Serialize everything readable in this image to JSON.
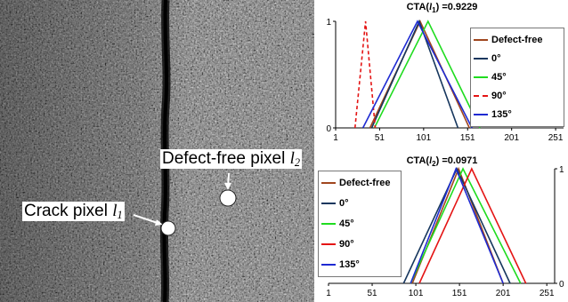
{
  "image": {
    "callouts": [
      {
        "label": "Crack pixel",
        "symbol": "l",
        "subscript": "1"
      },
      {
        "label": "Defect-free pixel",
        "symbol": "l",
        "subscript": "2"
      }
    ]
  },
  "chart_data": [
    {
      "type": "line",
      "title": "CTA(l1) =0.9229",
      "title_parts": {
        "prefix": "CTA(",
        "symbol": "l",
        "subscript": "1",
        "suffix": ") =0.9229"
      },
      "x_ticks": [
        1,
        51,
        101,
        151,
        201,
        251
      ],
      "xlim": [
        1,
        260
      ],
      "y_ticks": [
        0,
        1
      ],
      "ylim": [
        0,
        1
      ],
      "y_axis_side": "left",
      "legend_position": "right",
      "series": [
        {
          "name": "Defect-free",
          "color": "#a0461e",
          "dash": false,
          "x": [
            40,
            97,
            153
          ],
          "y": [
            0,
            1,
            0
          ]
        },
        {
          "name": "0°",
          "color": "#17375e",
          "dash": false,
          "x": [
            42,
            96,
            140
          ],
          "y": [
            0,
            1,
            0
          ]
        },
        {
          "name": "45°",
          "color": "#1fdc1f",
          "dash": false,
          "x": [
            45,
            106,
            165
          ],
          "y": [
            0,
            1,
            0
          ]
        },
        {
          "name": "90°",
          "color": "#e41414",
          "dash": true,
          "x": [
            23,
            35,
            46
          ],
          "y": [
            0,
            1,
            0
          ]
        },
        {
          "name": "135°",
          "color": "#1e2ad2",
          "dash": false,
          "x": [
            32,
            94,
            156
          ],
          "y": [
            0,
            1,
            0
          ]
        }
      ]
    },
    {
      "type": "line",
      "title": "CTA(l2) =0.0971",
      "title_parts": {
        "prefix": "CTA(",
        "symbol": "l",
        "subscript": "2",
        "suffix": ") =0.0971"
      },
      "x_ticks": [
        1,
        51,
        101,
        151,
        201,
        251
      ],
      "xlim": [
        1,
        260
      ],
      "y_ticks": [
        0,
        1
      ],
      "ylim": [
        0,
        1
      ],
      "y_axis_side": "right",
      "legend_position": "left",
      "series": [
        {
          "name": "Defect-free",
          "color": "#a0461e",
          "dash": false,
          "x": [
            97,
            150,
            201
          ],
          "y": [
            0,
            1,
            0
          ]
        },
        {
          "name": "0°",
          "color": "#17375e",
          "dash": false,
          "x": [
            87,
            148,
            209
          ],
          "y": [
            0,
            1,
            0
          ]
        },
        {
          "name": "45°",
          "color": "#1fdc1f",
          "dash": false,
          "x": [
            95,
            155,
            221
          ],
          "y": [
            0,
            1,
            0
          ]
        },
        {
          "name": "90°",
          "color": "#e41414",
          "dash": false,
          "x": [
            105,
            165,
            227
          ],
          "y": [
            0,
            1,
            0
          ]
        },
        {
          "name": "135°",
          "color": "#1e2ad2",
          "dash": false,
          "x": [
            95,
            147,
            201
          ],
          "y": [
            0,
            1,
            0
          ]
        }
      ]
    }
  ]
}
